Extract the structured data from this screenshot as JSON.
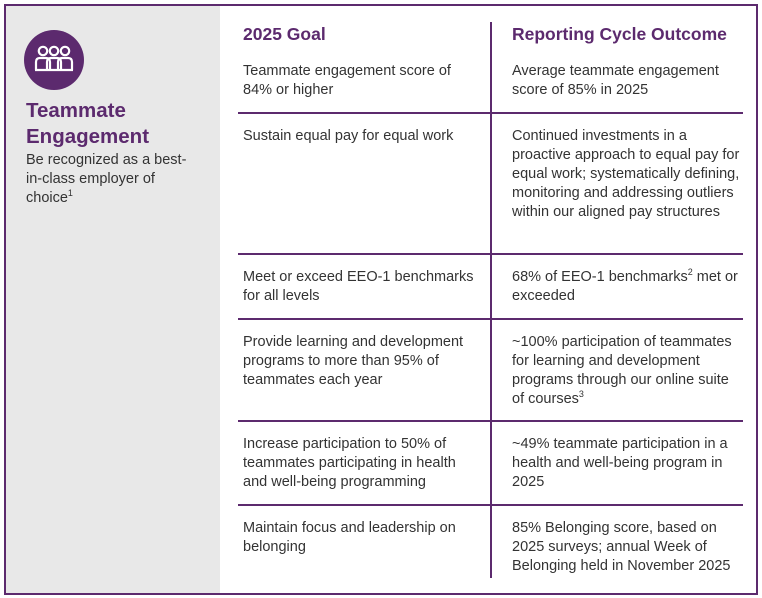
{
  "sidebar": {
    "icon": "people-group-icon",
    "title_line1": "Teammate",
    "title_line2": "Engagement",
    "description": "Be recognized as a best-in-class employer of choice",
    "footnote": "1"
  },
  "columns": {
    "goal": "2025 Goal",
    "outcome": "Reporting Cycle Outcome"
  },
  "rows": [
    {
      "goal": "Teammate engagement score of 84% or higher",
      "outcome": "Average teammate engagement score of  85% in 2025",
      "outcome_sup": ""
    },
    {
      "goal": "Sustain equal pay for equal work",
      "outcome": "Continued investments in a proactive approach to equal pay for equal work; systematically defining, monitoring and addressing outliers within our aligned pay structures",
      "outcome_sup": ""
    },
    {
      "goal": "Meet or exceed EEO-1 benchmarks for all levels",
      "outcome_a": "68% of EEO-1  benchmarks",
      "outcome_sup": "2",
      "outcome_b": " met or exceeded"
    },
    {
      "goal": "Provide learning and development programs to more than 95% of teammates each year",
      "outcome": "~100% participation of teammates for learning and development programs through our online suite of courses",
      "outcome_sup": "3"
    },
    {
      "goal": "Increase participation to 50% of teammates participating in health and well-being programming",
      "outcome": "~49% teammate participation in a health and well-being program in 2025",
      "outcome_sup": ""
    },
    {
      "goal": "Maintain focus and leadership on belonging",
      "outcome": "85% Belonging score, based on 2025 surveys; annual Week of Belonging held in November 2025",
      "outcome_sup": ""
    }
  ],
  "colors": {
    "accent": "#5c2a6e",
    "sidebar_bg": "#e8e8e8",
    "text": "#333333"
  }
}
